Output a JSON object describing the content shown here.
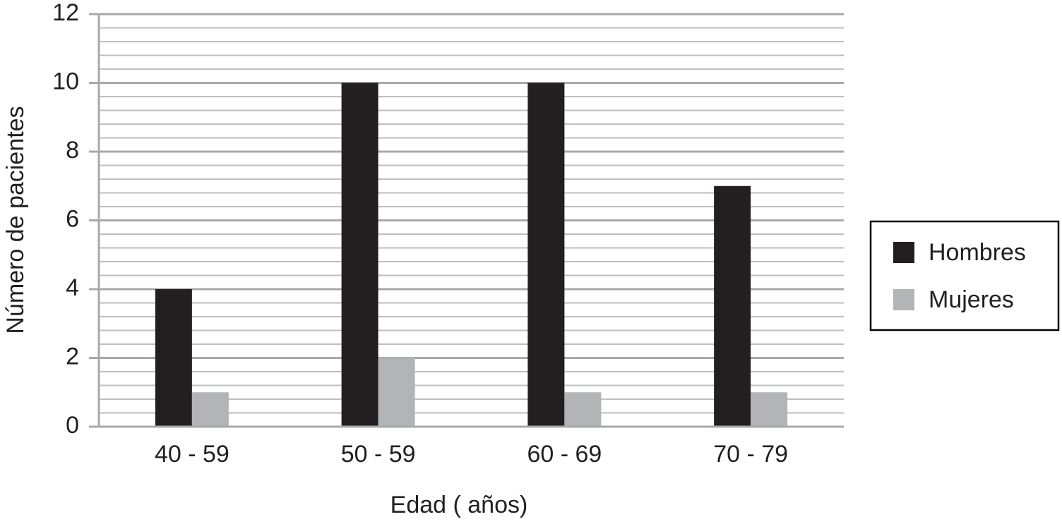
{
  "chart_data": {
    "type": "bar",
    "x_label": "Edad ( años)",
    "y_label": "Número de pacientes",
    "categories": [
      "40 - 59",
      "50 - 59",
      "60 - 69",
      "70 - 79"
    ],
    "series": [
      {
        "name": "Hombres",
        "color": "#231f20",
        "values": [
          4,
          10,
          10,
          7
        ]
      },
      {
        "name": "Mujeres",
        "color": "#b3b4b6",
        "values": [
          1,
          2,
          1,
          1
        ]
      }
    ],
    "ylim": [
      0,
      12
    ],
    "yticks": [
      0,
      2,
      4,
      6,
      8,
      10,
      12
    ],
    "minor_yticks": [
      0.4,
      0.8,
      1.2,
      1.6,
      2.4,
      2.8,
      3.2,
      3.6,
      4.4,
      4.8,
      5.2,
      5.6,
      6.4,
      6.8,
      7.2,
      7.6,
      8.4,
      8.8,
      9.2,
      9.6,
      10.4,
      10.8,
      11.2,
      11.6
    ],
    "grid": true,
    "legend": "right"
  }
}
